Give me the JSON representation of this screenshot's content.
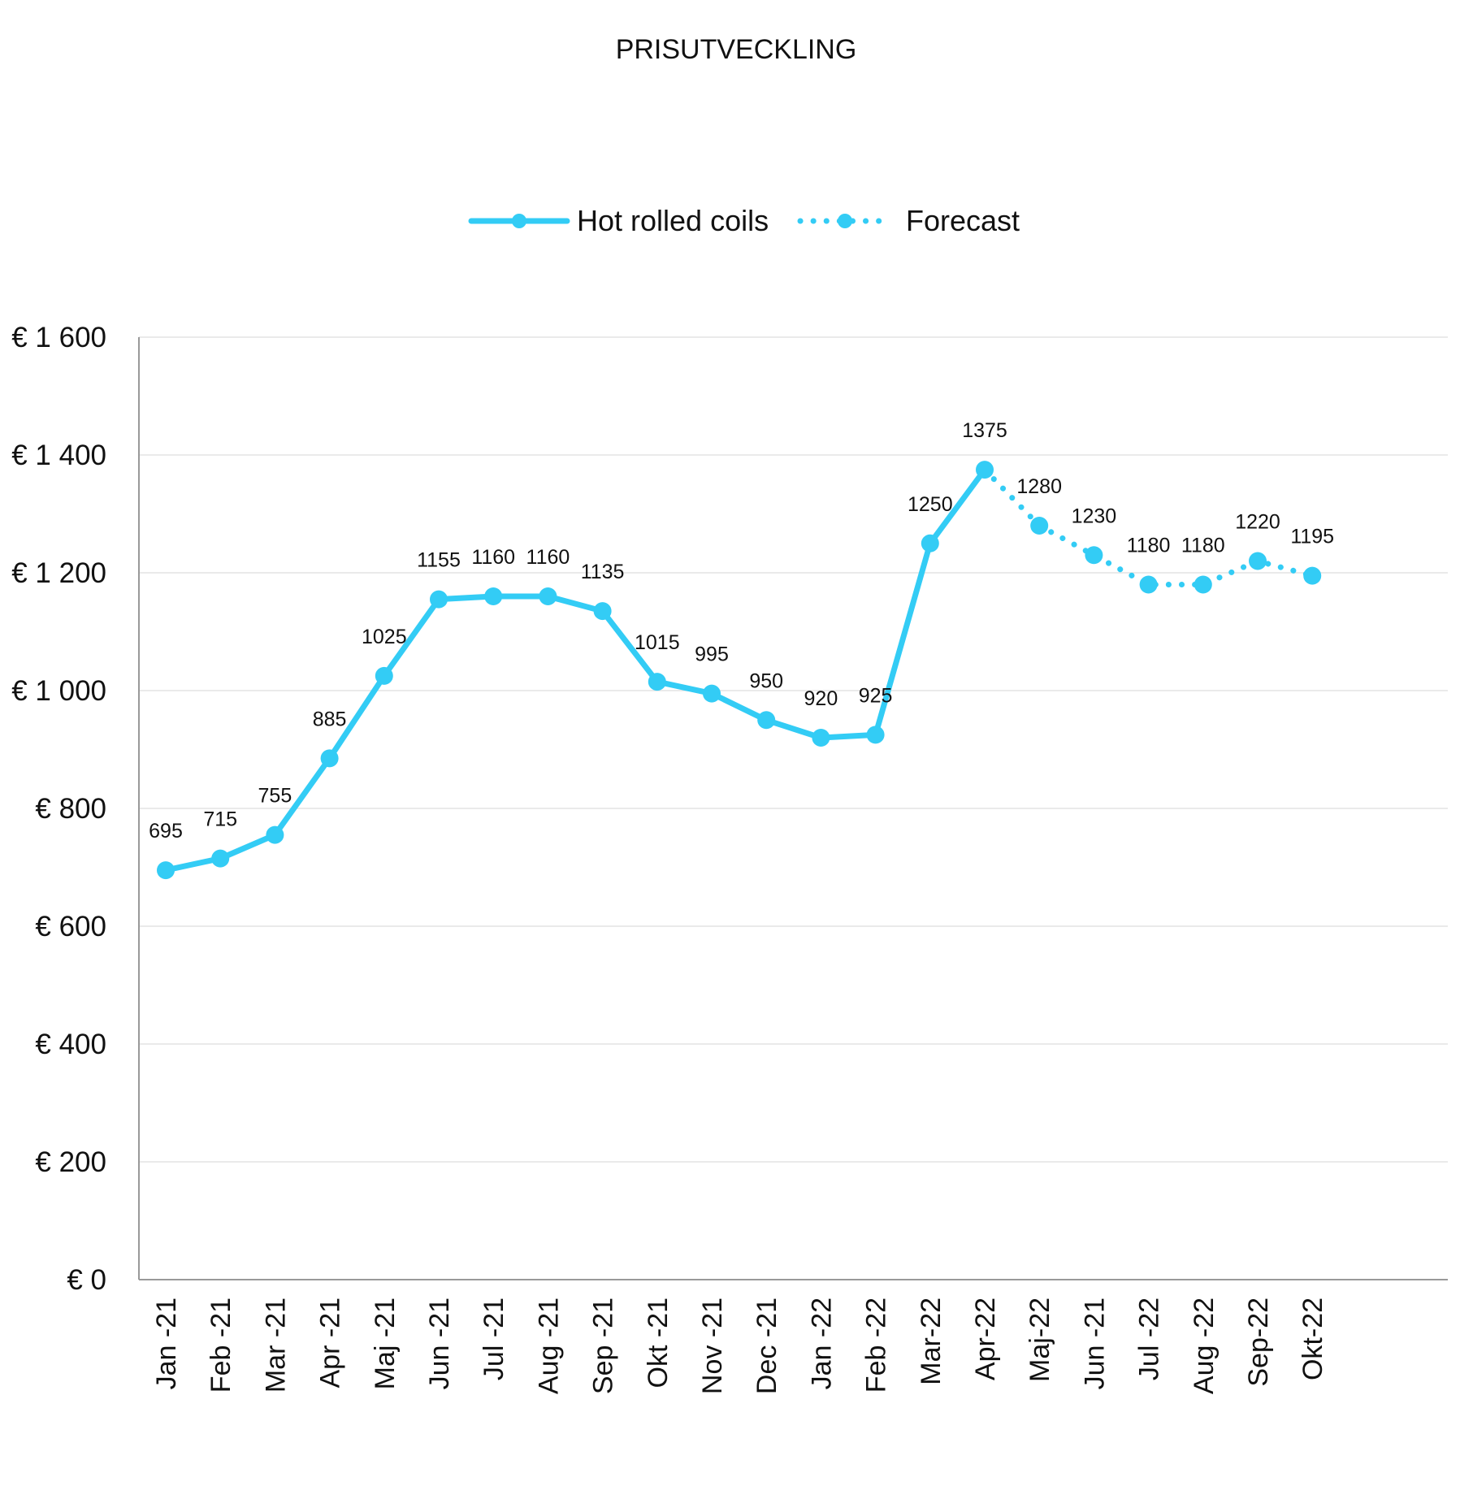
{
  "chart_data": {
    "type": "line",
    "title": "PRISUTVECKLING",
    "xlabel": "",
    "ylabel": "",
    "categories": [
      "Jan -21",
      "Feb -21",
      "Mar -21",
      "Apr -21",
      "Maj -21",
      "Jun -21",
      "Jul -21",
      "Aug -21",
      "Sep -21",
      "Okt -21",
      "Nov -21",
      "Dec -21",
      "Jan -22",
      "Feb -22",
      "Mar-22",
      "Apr-22",
      "Maj-22",
      "Jun -21",
      "Jul -22",
      "Aug -22",
      "Sep-22",
      "Okt-22"
    ],
    "series": [
      {
        "name": "Hot rolled coils",
        "style": "solid",
        "values": [
          695,
          715,
          755,
          885,
          1025,
          1155,
          1160,
          1160,
          1135,
          1015,
          995,
          950,
          920,
          925,
          1250,
          1375,
          null,
          null,
          null,
          null,
          null,
          null
        ]
      },
      {
        "name": "Forecast",
        "style": "dotted",
        "values": [
          null,
          null,
          null,
          null,
          null,
          null,
          null,
          null,
          null,
          null,
          null,
          null,
          null,
          null,
          null,
          1375,
          1280,
          1230,
          1180,
          1180,
          1220,
          1195
        ]
      }
    ],
    "data_labels": [
      "695",
      "715",
      "755",
      "885",
      "1025",
      "1155",
      "1160",
      "1160",
      "1135",
      "1015",
      "995",
      "950",
      "920",
      "925",
      "1250",
      "1375",
      "1280",
      "1230",
      "1180",
      "1180",
      "1220",
      "1195"
    ],
    "yticks": [
      "€ 0",
      "€ 200",
      "€ 400",
      "€ 600",
      "€ 800",
      "€ 1 000",
      "€ 1 200",
      "€ 1 400",
      "€ 1 600"
    ],
    "ylim": [
      0,
      1600
    ],
    "ytick_step": 200,
    "grid": true,
    "legend_position": "top",
    "colors": {
      "line": "#33ccf5",
      "grid": "#e3e3e3",
      "axis": "#999999"
    }
  }
}
